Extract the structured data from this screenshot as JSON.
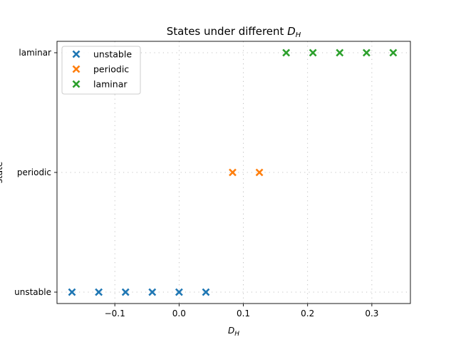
{
  "chart_data": {
    "type": "scatter",
    "title_main": "States under different ",
    "title_var": "D",
    "title_sub": "H",
    "xlabel_var": "D",
    "xlabel_sub": "H",
    "ylabel": "state",
    "xlim": [
      -0.19,
      0.36
    ],
    "x_ticks": [
      {
        "value": -0.1,
        "label": "−0.1"
      },
      {
        "value": 0.0,
        "label": "0.0"
      },
      {
        "value": 0.1,
        "label": "0.1"
      },
      {
        "value": 0.2,
        "label": "0.2"
      },
      {
        "value": 0.3,
        "label": "0.3"
      }
    ],
    "categories": [
      "unstable",
      "periodic",
      "laminar"
    ],
    "grid": true,
    "legend_position": "upper-left",
    "marker": "X",
    "series": [
      {
        "name": "unstable",
        "color": "#1f77b4",
        "category": "unstable",
        "x": [
          -0.1667,
          -0.125,
          -0.0833,
          -0.0417,
          0.0,
          0.0417
        ]
      },
      {
        "name": "periodic",
        "color": "#ff7f0e",
        "category": "periodic",
        "x": [
          0.0833,
          0.125
        ]
      },
      {
        "name": "laminar",
        "color": "#2ca02c",
        "category": "laminar",
        "x": [
          0.1667,
          0.2083,
          0.25,
          0.2917,
          0.3333
        ]
      }
    ]
  }
}
